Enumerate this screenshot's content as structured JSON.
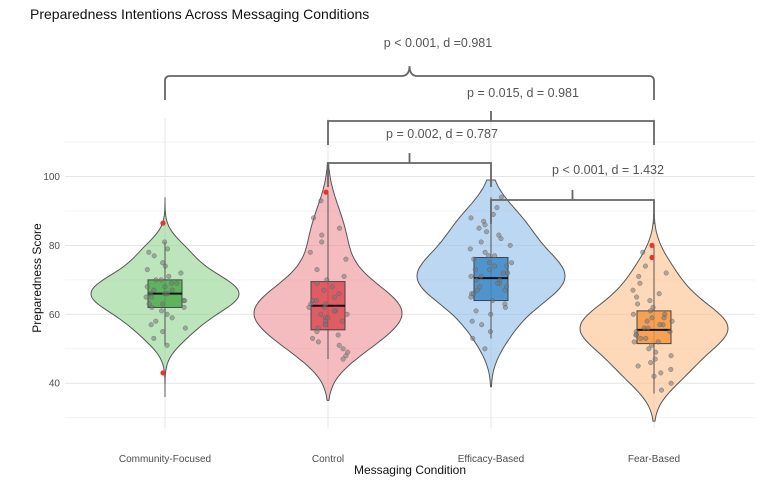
{
  "chart_data": {
    "type": "violin",
    "title": "Preparedness Intentions Across Messaging Conditions",
    "xlabel": "Messaging Condition",
    "ylabel": "Preparedness Score",
    "ylim": [
      27,
      117
    ],
    "yticks": [
      40,
      60,
      80,
      100
    ],
    "grid": true,
    "categories": [
      "Community-Focused",
      "Control",
      "Efficacy-Based",
      "Fear-Based"
    ],
    "colors": [
      "#8fd48f",
      "#ec8f95",
      "#90bce8",
      "#fcc08a"
    ],
    "box_colors": [
      "#4dac4d",
      "#dc4b55",
      "#3d88c8",
      "#f59642"
    ],
    "groups": [
      {
        "name": "Community-Focused",
        "violin_min": 36,
        "violin_max": 94,
        "box": {
          "q1": 62,
          "median": 66,
          "q3": 70
        },
        "whisker": [
          51,
          81
        ],
        "outliers": [
          86.5,
          43
        ],
        "points": [
          81,
          79,
          78,
          77,
          75,
          74,
          73,
          72,
          71,
          70,
          70,
          69,
          69,
          68,
          68,
          67,
          67,
          66,
          66,
          66,
          65,
          65,
          64,
          64,
          63,
          63,
          62,
          62,
          61,
          60,
          59,
          58,
          57,
          56,
          55,
          53,
          51
        ]
      },
      {
        "name": "Control",
        "violin_min": 35,
        "violin_max": 104,
        "box": {
          "q1": 55.5,
          "median": 62.5,
          "q3": 69.5
        },
        "whisker": [
          47,
          95
        ],
        "outliers": [
          95.5
        ],
        "points": [
          93,
          88,
          85,
          83,
          81,
          78,
          76,
          73,
          71,
          70,
          69,
          68,
          67,
          66,
          65,
          64,
          64,
          63,
          63,
          62,
          62,
          61,
          61,
          60,
          60,
          59,
          59,
          58,
          58,
          57,
          57,
          56,
          55,
          54,
          53,
          52,
          51,
          50,
          49,
          48,
          47
        ]
      },
      {
        "name": "Efficacy-Based",
        "violin_min": 39,
        "violin_max": 99,
        "box": {
          "q1": 64,
          "median": 70.5,
          "q3": 76.5
        },
        "whisker": [
          53,
          94
        ],
        "outliers": [],
        "points": [
          94,
          91,
          89,
          88,
          87,
          86,
          85,
          84,
          83,
          82,
          81,
          80,
          79,
          78,
          77,
          77,
          76,
          75,
          75,
          74,
          74,
          73,
          73,
          72,
          72,
          71,
          71,
          70,
          70,
          69,
          69,
          68,
          68,
          67,
          67,
          66,
          66,
          65,
          64,
          63,
          62,
          61,
          60,
          58,
          57,
          55,
          53,
          50
        ]
      },
      {
        "name": "Fear-Based",
        "violin_min": 29,
        "violin_max": 89,
        "box": {
          "q1": 51.5,
          "median": 55.5,
          "q3": 61
        },
        "whisker": [
          37,
          80
        ],
        "outliers": [
          80,
          76.5
        ],
        "points": [
          78,
          74,
          72,
          71,
          69,
          67,
          66,
          65,
          64,
          63,
          62,
          61,
          60,
          60,
          59,
          59,
          58,
          58,
          57,
          57,
          56,
          56,
          55,
          55,
          54,
          54,
          53,
          53,
          52,
          52,
          51,
          50,
          49,
          48,
          47,
          46,
          45,
          44,
          43,
          42,
          40,
          38
        ]
      }
    ],
    "comparisons": [
      {
        "from": 0,
        "to": 3,
        "label": "p < 0.001, d =0.981"
      },
      {
        "from": 1,
        "to": 3,
        "label": "p = 0.015, d = 0.981"
      },
      {
        "from": 1,
        "to": 2,
        "label": "p = 0.002, d = 0.787"
      },
      {
        "from": 2,
        "to": 3,
        "label": "p < 0.001, d = 1.432"
      }
    ]
  }
}
